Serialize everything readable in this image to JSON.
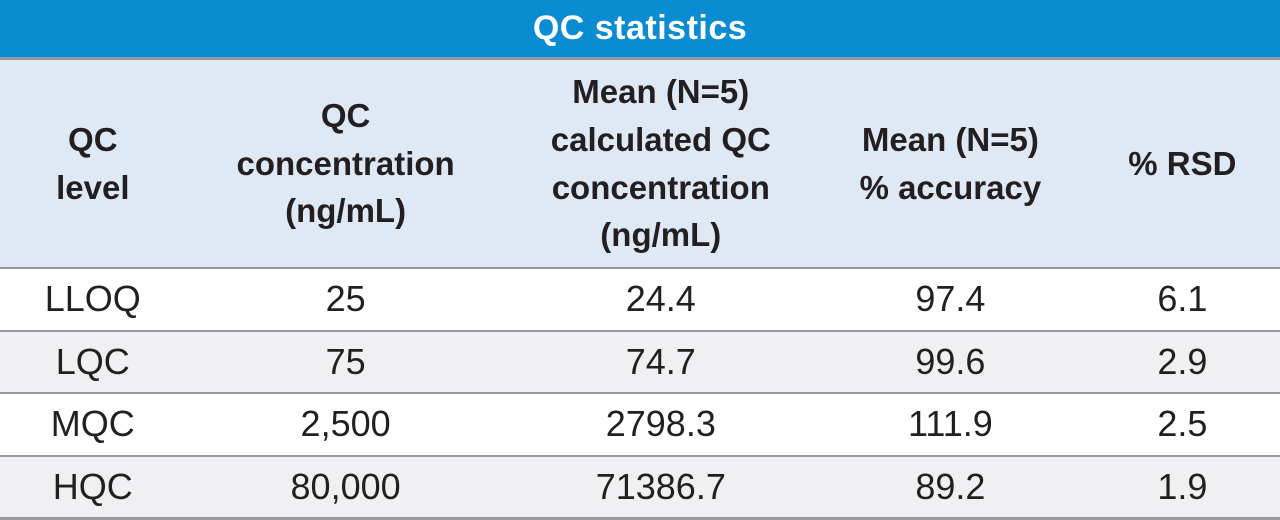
{
  "table": {
    "title": "QC statistics",
    "headers": [
      "QC\nlevel",
      "QC\nconcentration\n(ng/mL)",
      "Mean (N=5)\ncalculated QC\nconcentration\n(ng/mL)",
      "Mean (N=5)\n% accuracy",
      "% RSD"
    ],
    "rows": [
      [
        "LLOQ",
        "25",
        "24.4",
        "97.4",
        "6.1"
      ],
      [
        "LQC",
        "75",
        "74.7",
        "99.6",
        "2.9"
      ],
      [
        "MQC",
        "2,500",
        "2798.3",
        "111.9",
        "2.5"
      ],
      [
        "HQC",
        "80,000",
        "71386.7",
        "89.2",
        "1.9"
      ]
    ]
  },
  "colors": {
    "title_bar": "#0a8cd2",
    "title_text": "#ffffff",
    "header_bg": "#dee9f5",
    "row_bg": "#ffffff",
    "row_alt_bg": "#f0f0f2",
    "divider": "#97999d",
    "text": "#231f20"
  },
  "chart_data": {
    "type": "table",
    "title": "QC statistics",
    "columns": [
      "QC level",
      "QC concentration (ng/mL)",
      "Mean (N=5) calculated QC concentration (ng/mL)",
      "Mean (N=5) % accuracy",
      "% RSD"
    ],
    "rows": [
      [
        "LLOQ",
        25,
        24.4,
        97.4,
        6.1
      ],
      [
        "LQC",
        75,
        74.7,
        99.6,
        2.9
      ],
      [
        "MQC",
        2500,
        2798.3,
        111.9,
        2.5
      ],
      [
        "HQC",
        80000,
        71386.7,
        89.2,
        1.9
      ]
    ]
  }
}
